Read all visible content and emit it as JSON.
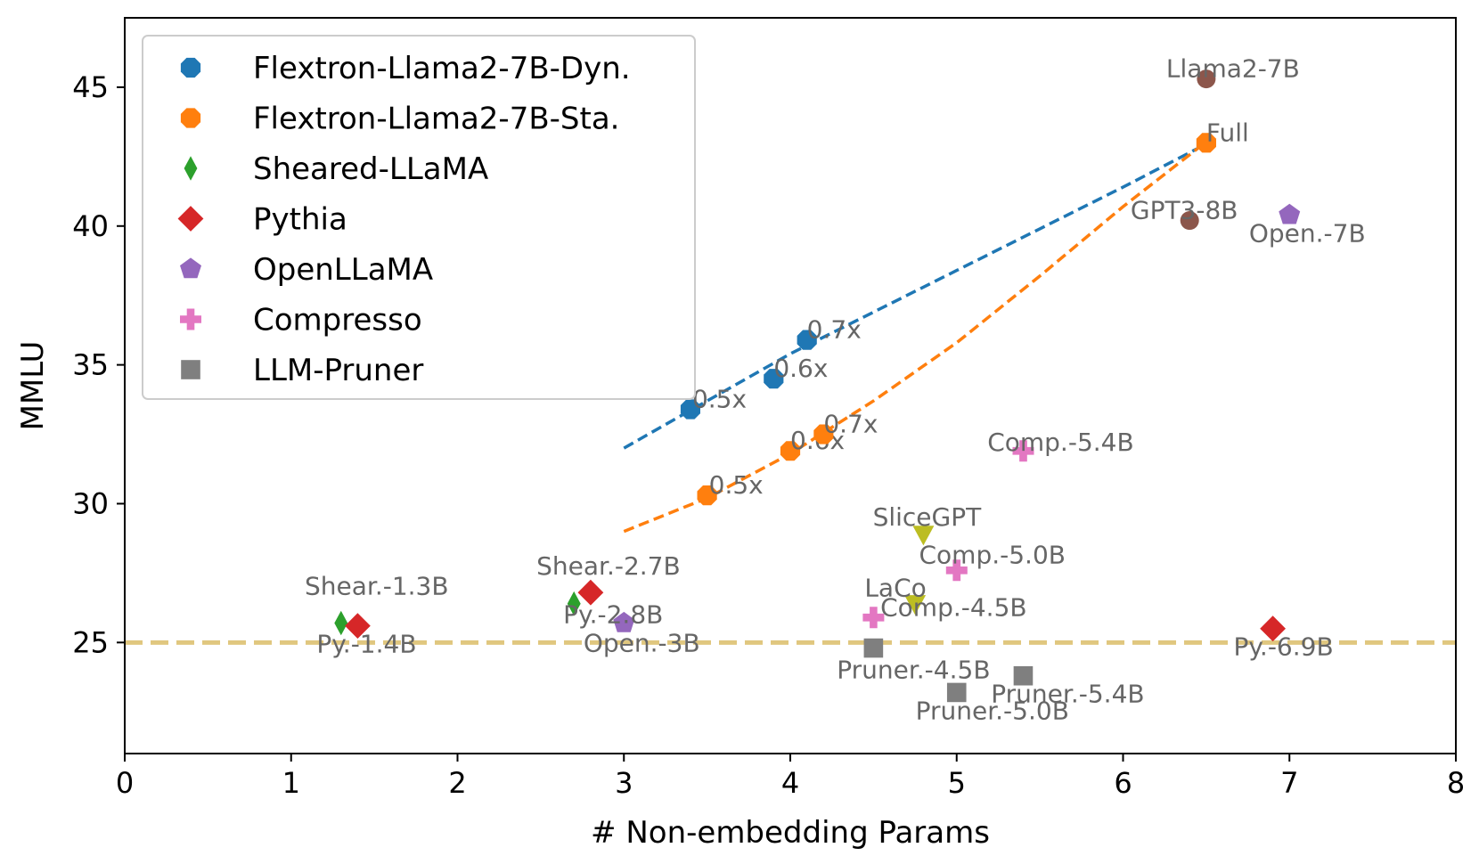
{
  "chart_data": {
    "type": "scatter",
    "title": "",
    "xlabel": "# Non-embedding Params",
    "ylabel": "MMLU",
    "xlim": [
      0,
      8
    ],
    "ylim": [
      21,
      47.5
    ],
    "xticks": [
      0,
      1,
      2,
      3,
      4,
      5,
      6,
      7,
      8
    ],
    "yticks": [
      25,
      30,
      35,
      40,
      45
    ],
    "legend_position": "top-left",
    "series": [
      {
        "name": "Flextron-Llama2-7B-Dyn.",
        "marker": "octagon",
        "color": "#1f77b4",
        "points": [
          {
            "x": 3.4,
            "y": 33.4,
            "label": "0.5x"
          },
          {
            "x": 3.9,
            "y": 34.5,
            "label": "0.6x"
          },
          {
            "x": 4.1,
            "y": 35.9,
            "label": "0.7x"
          }
        ]
      },
      {
        "name": "Flextron-Llama2-7B-Sta.",
        "marker": "octagon",
        "color": "#ff7f0e",
        "points": [
          {
            "x": 3.5,
            "y": 30.3,
            "label": "0.5x"
          },
          {
            "x": 4.0,
            "y": 31.9,
            "label": "0.6x"
          },
          {
            "x": 4.2,
            "y": 32.5,
            "label": "0.7x"
          },
          {
            "x": 6.5,
            "y": 43.0,
            "label": "Full"
          }
        ]
      },
      {
        "name": "Sheared-LLaMA",
        "marker": "thin_diamond",
        "color": "#2ca02c",
        "points": [
          {
            "x": 1.3,
            "y": 25.7,
            "label": "Shear.-1.3B"
          },
          {
            "x": 2.7,
            "y": 26.4,
            "label": ""
          }
        ]
      },
      {
        "name": "Pythia",
        "marker": "diamond",
        "color": "#d62728",
        "points": [
          {
            "x": 1.4,
            "y": 25.6,
            "label": "Py.-1.4B"
          },
          {
            "x": 2.8,
            "y": 26.8,
            "label": "Shear.-2.7B"
          },
          {
            "x": 6.9,
            "y": 25.5,
            "label": "Py.-6.9B"
          }
        ]
      },
      {
        "name": "OpenLLaMA",
        "marker": "pentagon",
        "color": "#9467bd",
        "points": [
          {
            "x": 3.0,
            "y": 25.7,
            "label": "Py.-2.8B"
          },
          {
            "x": 7.0,
            "y": 40.4,
            "label": "Open.-7B"
          }
        ]
      },
      {
        "name": "Compresso",
        "marker": "plus",
        "color": "#e377c2",
        "points": [
          {
            "x": 5.4,
            "y": 31.9,
            "label": "Comp.-5.4B"
          },
          {
            "x": 5.0,
            "y": 27.6,
            "label": "Comp.-5.0B"
          },
          {
            "x": 4.5,
            "y": 25.9,
            "label": "Comp.-4.5B"
          }
        ]
      },
      {
        "name": "LLM-Pruner",
        "marker": "square",
        "color": "#7f7f7f",
        "points": [
          {
            "x": 4.5,
            "y": 24.8,
            "label": "Pruner.-4.5B"
          },
          {
            "x": 5.4,
            "y": 23.8,
            "label": "Pruner.-5.4B"
          },
          {
            "x": 5.0,
            "y": 23.2,
            "label": "Pruner.-5.0B"
          }
        ]
      }
    ],
    "extra_points": [
      {
        "name": "Llama2",
        "marker": "circle",
        "color": "#8c564b",
        "x": 6.5,
        "y": 45.3,
        "label": "Llama2-7B"
      },
      {
        "name": "GPT3",
        "marker": "circle",
        "color": "#8c564b",
        "x": 6.4,
        "y": 40.2,
        "label": "GPT3-8B"
      },
      {
        "name": "SliceGPT",
        "marker": "triangle_down",
        "color": "#bcbd22",
        "x": 4.8,
        "y": 28.9,
        "label": "SliceGPT"
      },
      {
        "name": "LaCo",
        "marker": "triangle_down",
        "color": "#bcbd22",
        "x": 4.75,
        "y": 26.4,
        "label": "LaCo"
      }
    ],
    "free_annotations": [
      {
        "text": "Open.-3B",
        "x": 3.0,
        "y": 25.0
      }
    ],
    "trend_lines": [
      {
        "series": "Flextron-Llama2-7B-Dyn.",
        "color": "#1f77b4",
        "style": "dashed",
        "x": [
          3.0,
          3.5,
          4.0,
          4.5,
          5.0,
          5.5,
          6.0,
          6.45
        ],
        "y": [
          32.0,
          33.7,
          35.4,
          36.9,
          38.4,
          39.9,
          41.4,
          42.8
        ]
      },
      {
        "series": "Flextron-Llama2-7B-Sta.",
        "color": "#ff7f0e",
        "style": "dashed",
        "x": [
          3.0,
          3.5,
          4.0,
          4.5,
          5.0,
          5.5,
          6.0,
          6.45
        ],
        "y": [
          29.0,
          30.2,
          31.8,
          33.7,
          35.8,
          38.2,
          40.7,
          42.8
        ]
      }
    ],
    "reference_line": {
      "y": 25,
      "color": "#e0c77f",
      "style": "dashed"
    }
  }
}
